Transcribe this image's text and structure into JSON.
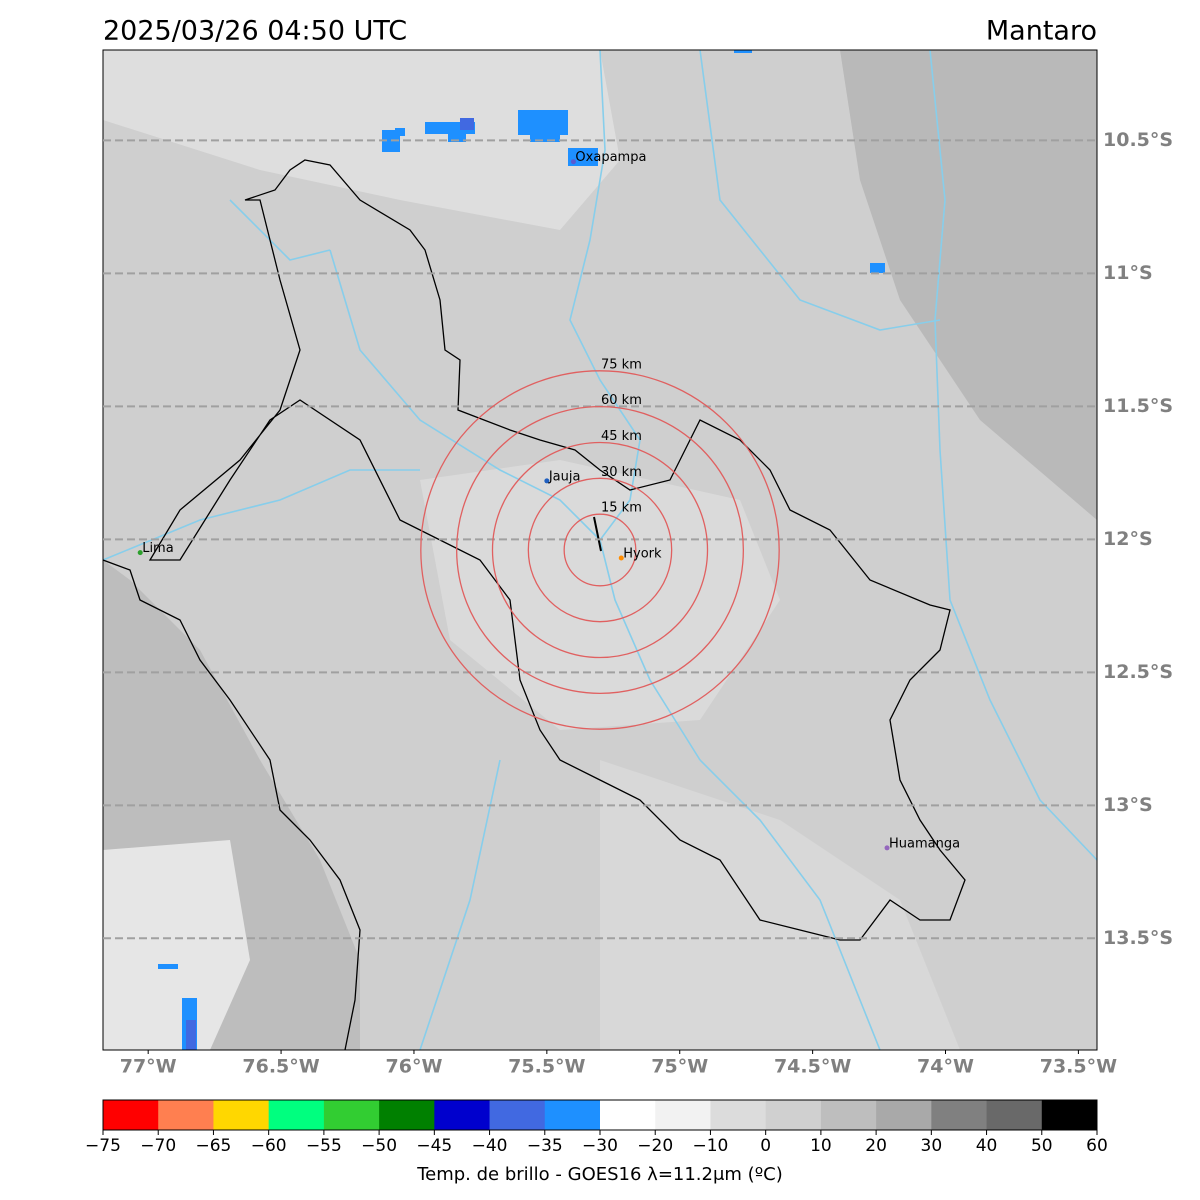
{
  "header": {
    "title": "2025/03/26 04:50 UTC",
    "region": "Mantaro"
  },
  "map": {
    "xlim": [
      -77.17,
      -73.43
    ],
    "ylim": [
      -13.92,
      -10.16
    ],
    "xticks": [
      {
        "value": -77,
        "label": "77°W"
      },
      {
        "value": -76.5,
        "label": "76.5°W"
      },
      {
        "value": -76,
        "label": "76°W"
      },
      {
        "value": -75.5,
        "label": "75.5°W"
      },
      {
        "value": -75,
        "label": "75°W"
      },
      {
        "value": -74.5,
        "label": "74.5°W"
      },
      {
        "value": -74,
        "label": "74°W"
      },
      {
        "value": -73.5,
        "label": "73.5°W"
      }
    ],
    "yticks": [
      {
        "value": -10.5,
        "label": "10.5°S"
      },
      {
        "value": -11,
        "label": "11°S"
      },
      {
        "value": -11.5,
        "label": "11.5°S"
      },
      {
        "value": -12,
        "label": "12°S"
      },
      {
        "value": -12.5,
        "label": "12.5°S"
      },
      {
        "value": -13,
        "label": "13°S"
      },
      {
        "value": -13.5,
        "label": "13.5°S"
      }
    ],
    "grid": true,
    "center": {
      "lon": -75.3,
      "lat": -12.04
    },
    "rings": [
      {
        "value": 15,
        "label": "15 km"
      },
      {
        "value": 30,
        "label": "30 km"
      },
      {
        "value": 45,
        "label": "45 km"
      },
      {
        "value": 60,
        "label": "60 km"
      },
      {
        "value": 75,
        "label": "75 km"
      }
    ],
    "ring_color": "#e06060",
    "cities": [
      {
        "name": "Oxapampa",
        "lon": -75.4,
        "lat": -10.58,
        "color": "#5a5ad0"
      },
      {
        "name": "Jauja",
        "lon": -75.5,
        "lat": -11.78,
        "color": "#1f5fbf"
      },
      {
        "name": "Hyork",
        "lon": -75.22,
        "lat": -12.07,
        "color": "#ff8c00"
      },
      {
        "name": "Lima",
        "lon": -77.03,
        "lat": -12.05,
        "color": "#2ca02c"
      },
      {
        "name": "Huamanga",
        "lon": -74.22,
        "lat": -13.16,
        "color": "#9467bd"
      }
    ]
  },
  "colorbar": {
    "bounds": [
      {
        "value": -75,
        "label": "−75"
      },
      {
        "value": -70,
        "label": "−70"
      },
      {
        "value": -65,
        "label": "−65"
      },
      {
        "value": -60,
        "label": "−60"
      },
      {
        "value": -55,
        "label": "−55"
      },
      {
        "value": -50,
        "label": "−50"
      },
      {
        "value": -45,
        "label": "−45"
      },
      {
        "value": -40,
        "label": "−40"
      },
      {
        "value": -35,
        "label": "−35"
      },
      {
        "value": -30,
        "label": "−30"
      },
      {
        "value": -20,
        "label": "−20"
      },
      {
        "value": -10,
        "label": "−10"
      },
      0,
      10,
      20,
      30,
      40,
      50,
      60
    ],
    "colors": [
      "#ff0000",
      "#ff7f50",
      "#ffd700",
      "#00ff7f",
      "#32cd32",
      "#008000",
      "#0000cd",
      "#4169e1",
      "#1e90ff",
      "#ffffff",
      "#f2f2f2",
      "#dcdcdc",
      "#d0d0d0",
      "#bebebe",
      "#a9a9a9",
      "#808080",
      "#696969",
      "#000000"
    ],
    "label": "Temp. de brillo - GOES16 λ=11.2μm (ºC)"
  }
}
